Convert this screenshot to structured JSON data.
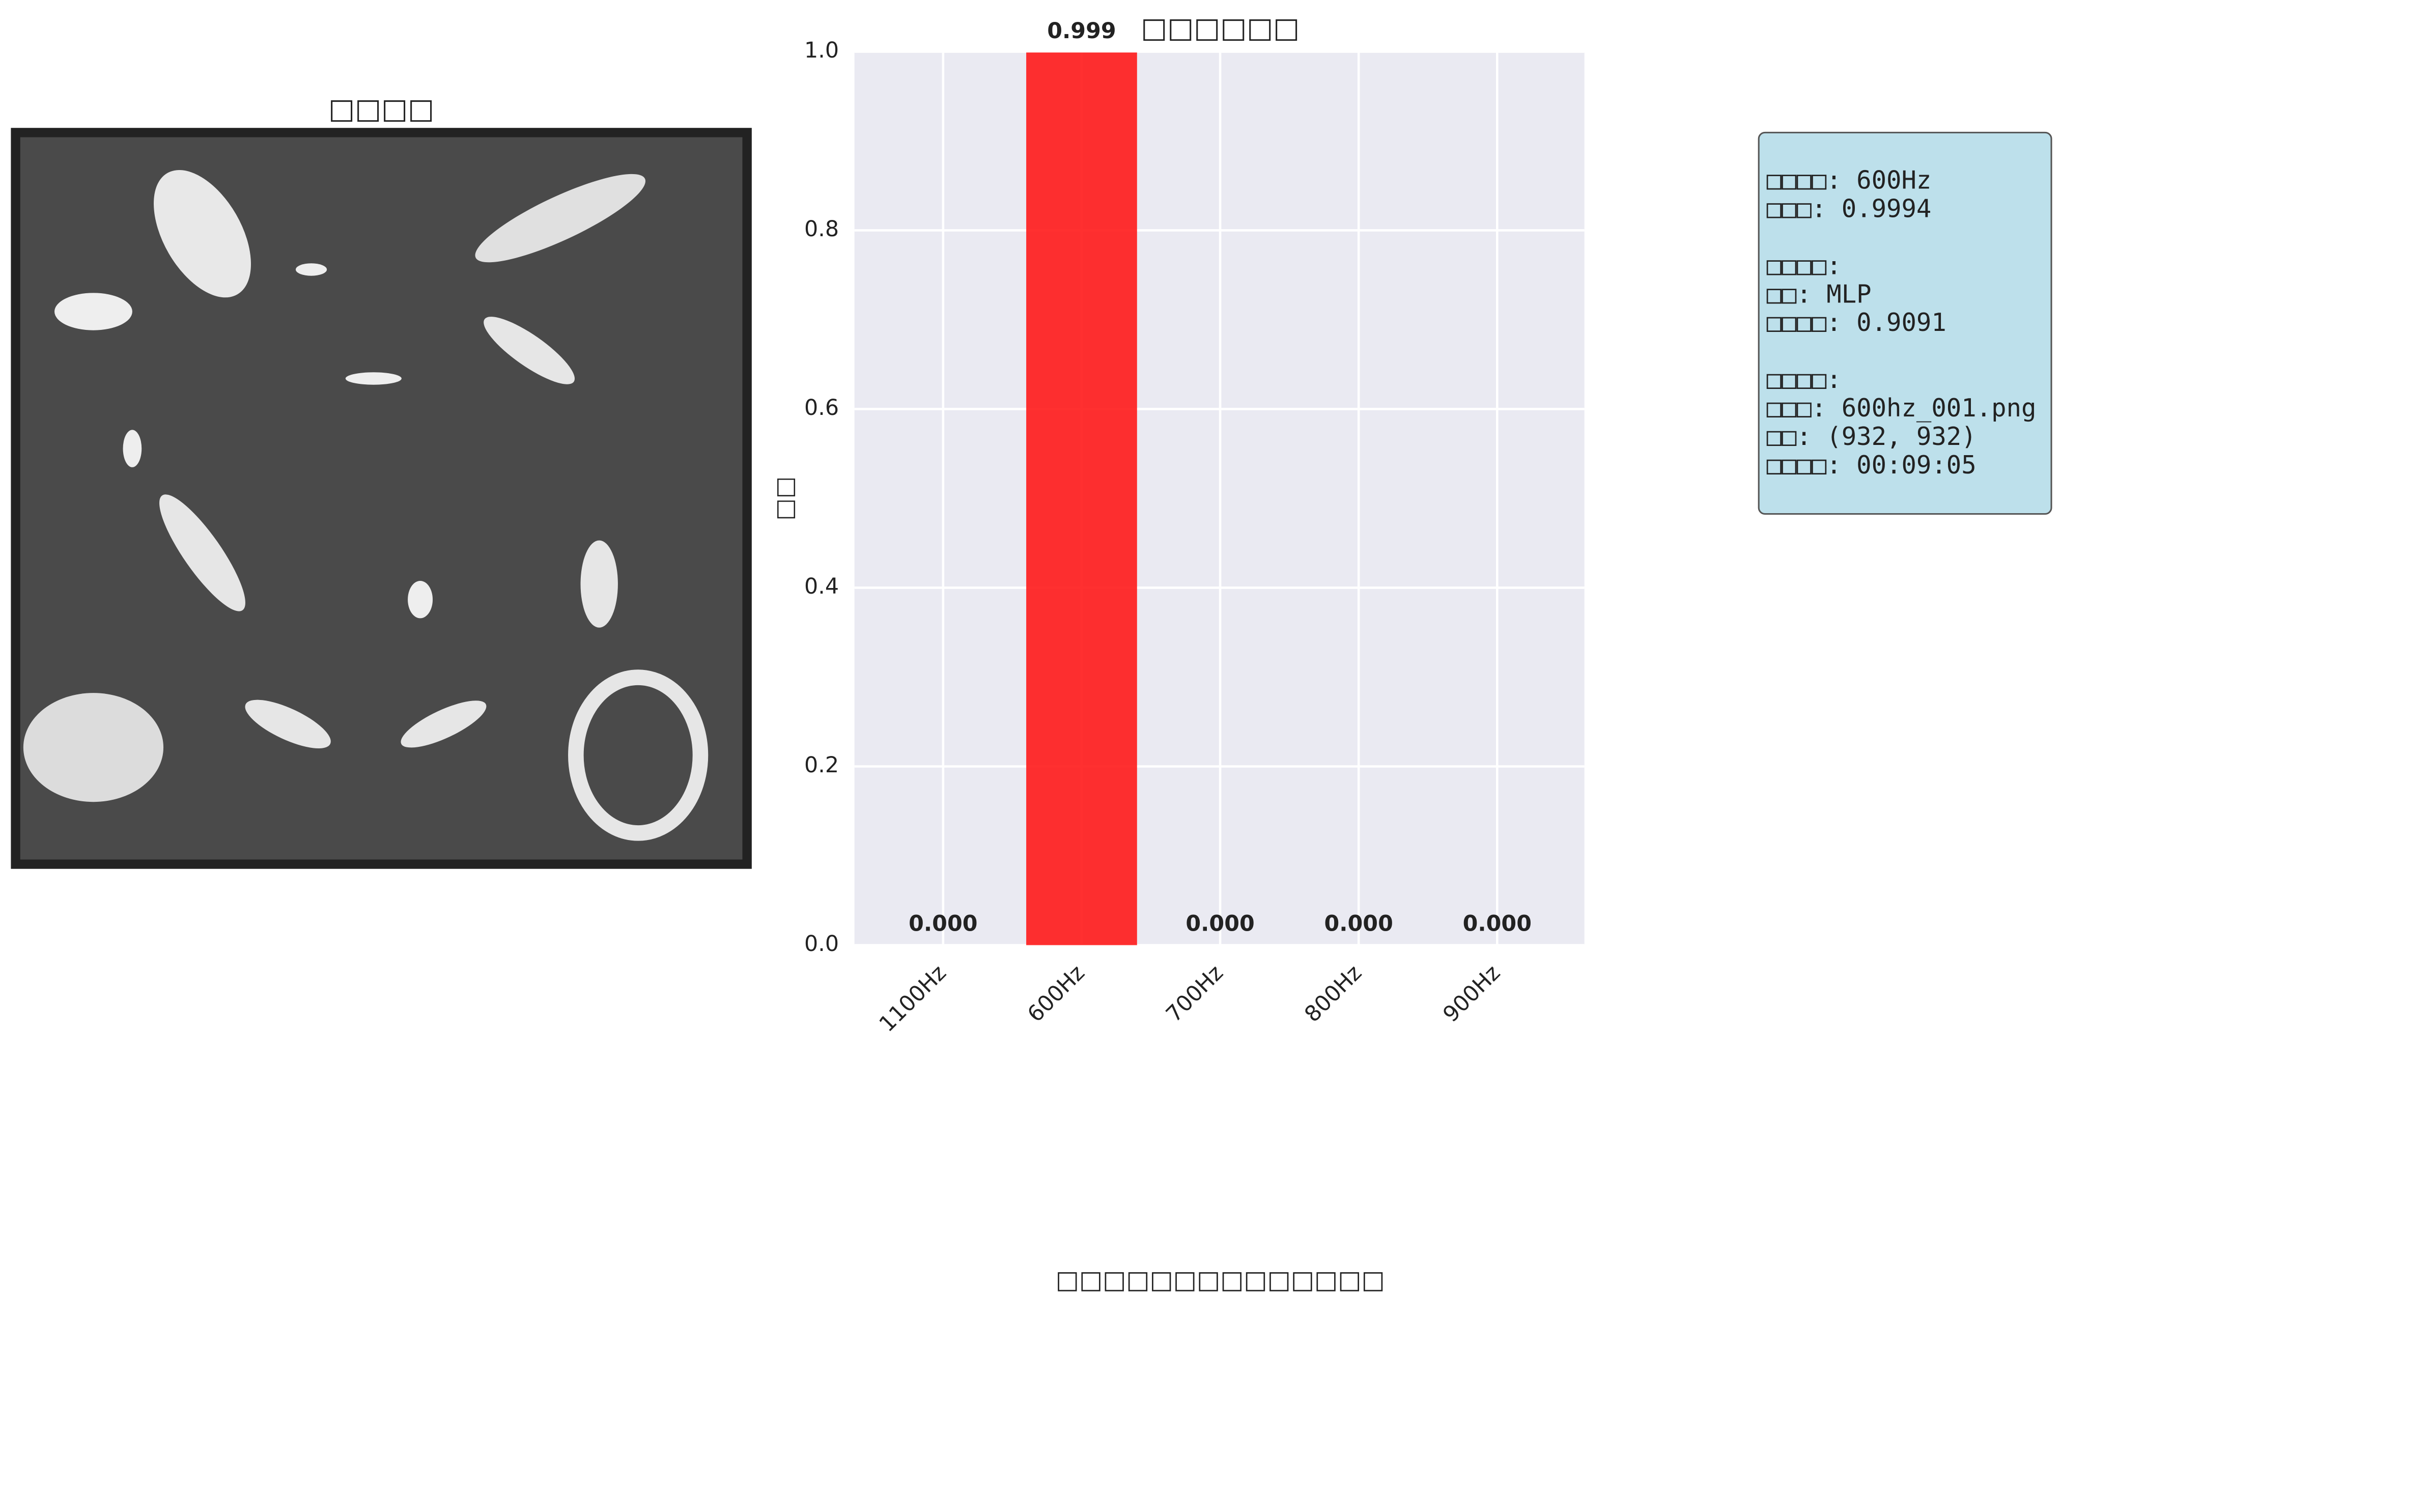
{
  "image_panel": {
    "title": "□□□□"
  },
  "chart_data": {
    "type": "bar",
    "title": "□□□□□□",
    "ylabel": "□□",
    "categories": [
      "1100Hz",
      "600Hz",
      "700Hz",
      "800Hz",
      "900Hz"
    ],
    "values": [
      0,
      0.999,
      0,
      0,
      0
    ],
    "value_labels": [
      "0.000",
      "0.999",
      "0.000",
      "0.000",
      "0.000"
    ],
    "colors": [
      "#aec7e8",
      "#ff1a1a",
      "#aec7e8",
      "#aec7e8",
      "#aec7e8"
    ],
    "ylim": [
      0,
      1
    ],
    "yticks": [
      {
        "value": 0,
        "label": "0.0"
      },
      {
        "value": 0.2,
        "label": "0.2"
      },
      {
        "value": 0.4,
        "label": "0.4"
      },
      {
        "value": 0.6,
        "label": "0.6"
      },
      {
        "value": 0.8,
        "label": "0.8"
      },
      {
        "value": 1,
        "label": "1.0"
      }
    ],
    "grid": true
  },
  "info_box": {
    "groups": [
      [
        "□□□□: 600Hz",
        "□□□: 0.9994"
      ],
      [
        "□□□□:",
        "□□: MLP",
        "□□□□: 0.9091"
      ],
      [
        "□□□□:",
        "□□□: 600hz_001.png",
        "□□: (932, 932)",
        "□□□□: 00:09:05"
      ]
    ]
  },
  "caption": "□□□□□□□□□□□□□□"
}
